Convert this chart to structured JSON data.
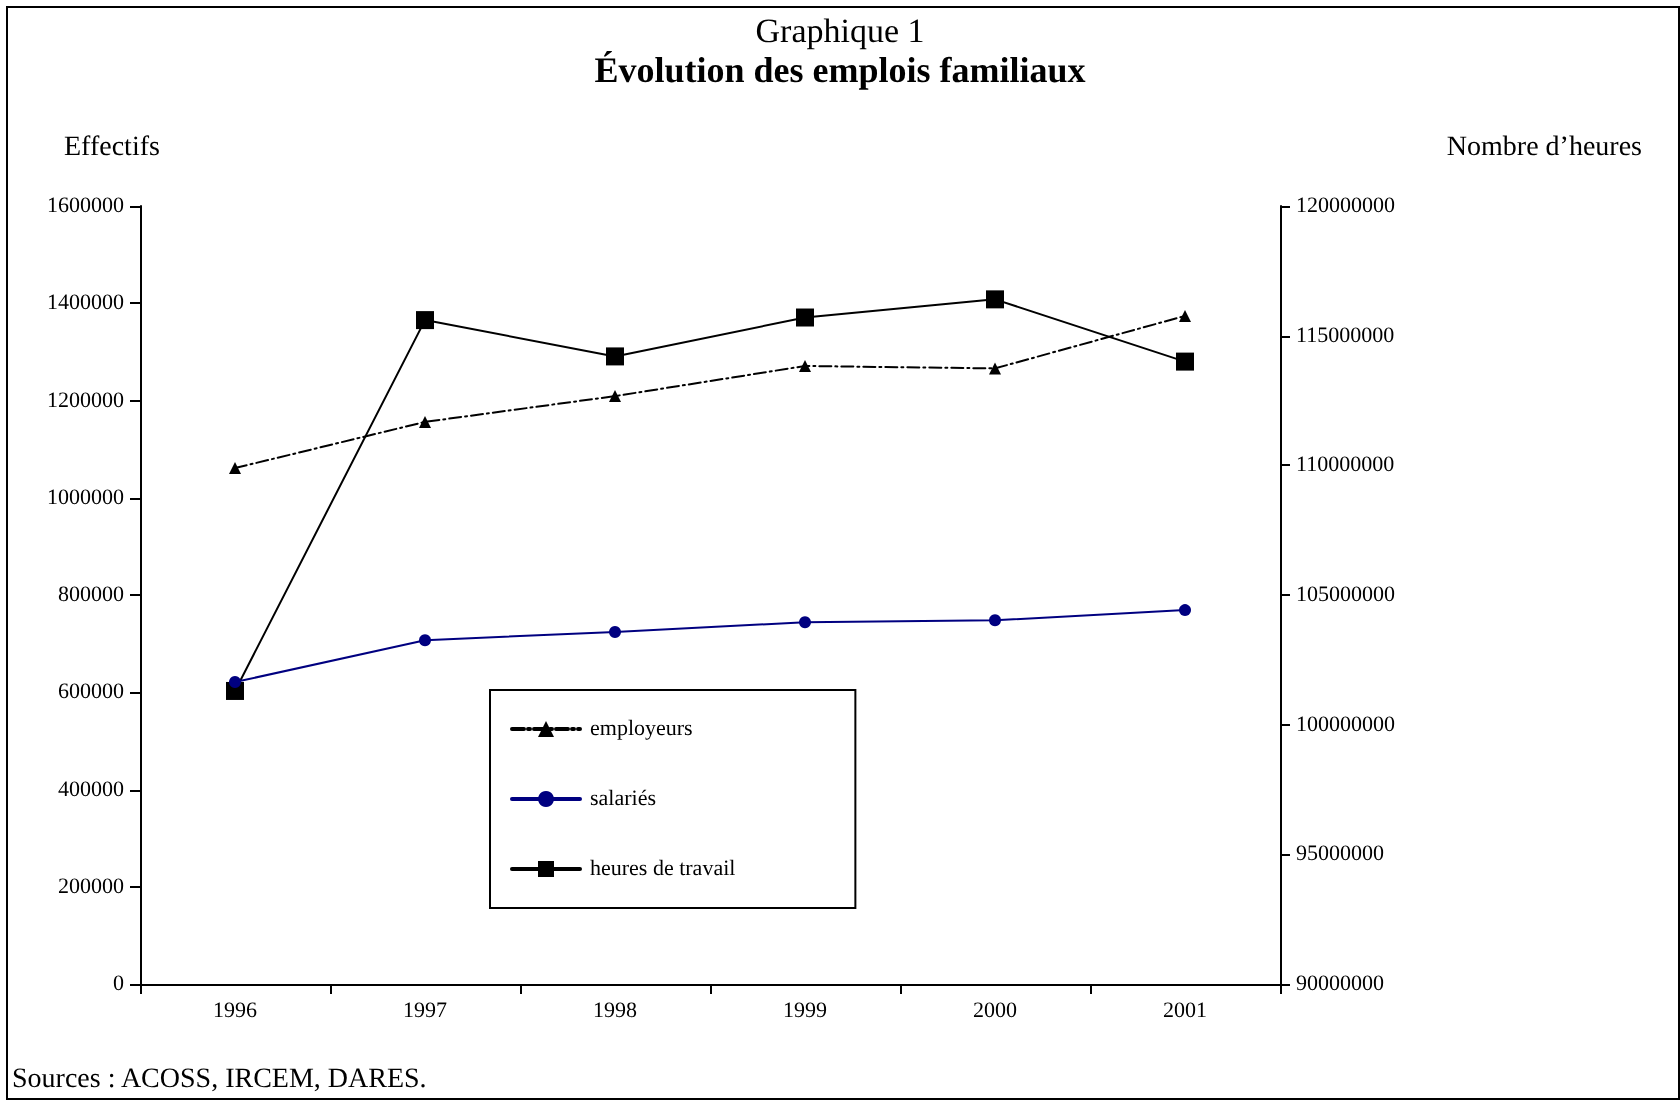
{
  "chart_data": {
    "type": "line",
    "title": "Graphique 1",
    "subtitle": "Évolution des emplois familiaux",
    "ylabel": "Effectifs",
    "y2label": "Nombre d’heures",
    "categories": [
      "1996",
      "1997",
      "1998",
      "1999",
      "2000",
      "2001"
    ],
    "series": [
      {
        "name": "employeurs",
        "color": "#000000",
        "marker": "triangle",
        "line_style": "dashed",
        "values": [
          1061000,
          1156000,
          1209000,
          1271000,
          1266000,
          1374000
        ]
      },
      {
        "name": "salariés",
        "color": "#000080",
        "marker": "circle",
        "line_style": "solid",
        "values": [
          621000,
          707000,
          724000,
          744000,
          748000,
          769000
        ]
      },
      {
        "name": "heures de travail",
        "color": "#000000",
        "marker": "square",
        "line_style": "solid",
        "axis": "y2",
        "values": [
          101300000,
          115600000,
          114200000,
          115700000,
          116400000,
          114000000
        ]
      }
    ],
    "ylim": [
      0,
      1600000
    ],
    "yticks": [
      0,
      200000,
      400000,
      600000,
      800000,
      1000000,
      1200000,
      1400000,
      1600000
    ],
    "y2lim": [
      90000000,
      120000000
    ],
    "y2ticks": [
      90000000,
      95000000,
      100000000,
      105000000,
      110000000,
      115000000,
      120000000
    ],
    "grid": false,
    "legend": "bottom",
    "annotations": [
      "Sources : ACOSS, IRCEM, DARES."
    ]
  }
}
